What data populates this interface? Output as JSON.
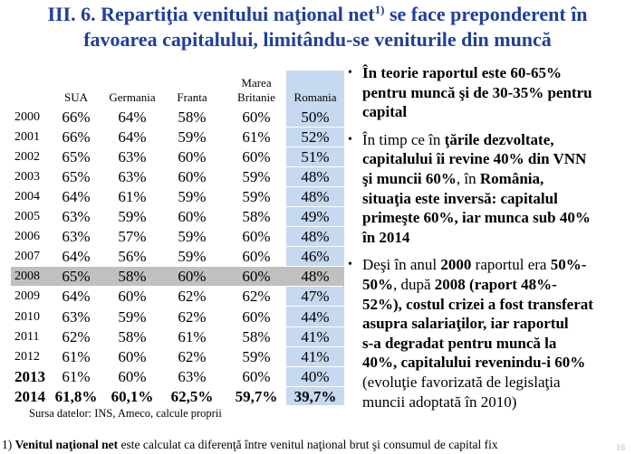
{
  "title": {
    "text": "III. 6. Repartiţia venitului naţional net",
    "sup": "1)",
    "rest": " se face preponderent în\nfavoarea capitalului, limitându-se veniturile din muncă"
  },
  "table": {
    "headers": [
      "SUA",
      "Germania",
      "Franta",
      "Marea\nBritanie",
      "Romania"
    ],
    "rows": [
      {
        "year": "2000",
        "values": [
          "66%",
          "64%",
          "58%",
          "60%",
          "50%"
        ]
      },
      {
        "year": "2001",
        "values": [
          "66%",
          "64%",
          "59%",
          "61%",
          "52%"
        ]
      },
      {
        "year": "2002",
        "values": [
          "65%",
          "63%",
          "60%",
          "60%",
          "51%"
        ]
      },
      {
        "year": "2003",
        "values": [
          "65%",
          "63%",
          "60%",
          "59%",
          "48%"
        ]
      },
      {
        "year": "2004",
        "values": [
          "64%",
          "61%",
          "59%",
          "59%",
          "48%"
        ]
      },
      {
        "year": "2005",
        "values": [
          "63%",
          "59%",
          "60%",
          "58%",
          "49%"
        ]
      },
      {
        "year": "2006",
        "values": [
          "63%",
          "57%",
          "59%",
          "60%",
          "48%"
        ]
      },
      {
        "year": "2007",
        "values": [
          "64%",
          "56%",
          "59%",
          "60%",
          "46%"
        ]
      },
      {
        "year": "2008",
        "values": [
          "65%",
          "58%",
          "60%",
          "60%",
          "48%"
        ],
        "highlight": true
      },
      {
        "year": "2009",
        "values": [
          "64%",
          "60%",
          "62%",
          "62%",
          "47%"
        ]
      },
      {
        "year": "2010",
        "values": [
          "63%",
          "59%",
          "62%",
          "60%",
          "44%"
        ]
      },
      {
        "year": "2011",
        "values": [
          "62%",
          "58%",
          "61%",
          "58%",
          "41%"
        ]
      },
      {
        "year": "2012",
        "values": [
          "61%",
          "60%",
          "62%",
          "59%",
          "41%"
        ]
      },
      {
        "year": "2013",
        "values": [
          "61%",
          "60%",
          "63%",
          "60%",
          "40%"
        ],
        "bold_year": true
      },
      {
        "year": "2014",
        "values": [
          "61,8%",
          "60,1%",
          "62,5%",
          "59,7%",
          "39,7%"
        ],
        "bold_year": true,
        "bold": true
      }
    ],
    "source": "Sursa datelor: INS, Ameco, calcule proprii"
  },
  "bullets": [
    [
      {
        "t": "În teorie raportul este 60-65%\npentru muncă şi de 30-35% pentru\ncapital",
        "b": true
      }
    ],
    [
      {
        "t": "În timp ce în ",
        "b": false
      },
      {
        "t": "ţările dezvoltate,\ncapitalului îi revine 40% din VNN\nşi muncii 60%",
        "b": true
      },
      {
        "t": ", în ",
        "b": false
      },
      {
        "t": "România,\nsituaţia este inversă: capitalul\nprimeşte 60%, iar munca sub 40%\nîn 2014",
        "b": true
      }
    ],
    [
      {
        "t": "Deşi în anul ",
        "b": false
      },
      {
        "t": "2000",
        "b": true
      },
      {
        "t": " raportul era ",
        "b": false
      },
      {
        "t": "50%-\n50%",
        "b": true
      },
      {
        "t": ", după ",
        "b": false
      },
      {
        "t": "2008 (raport 48%-\n52%), costul crizei a fost transferat\nasupra  salariaţilor, iar raportul\ns-a degradat pentru muncă la\n40%, capitalului revenindu-i 60%",
        "b": true
      },
      {
        "t": "\n(evoluţie favorizată de legislaţia\nmuncii adoptată în 2010)",
        "b": false
      }
    ]
  ],
  "footnote": {
    "num": "1) ",
    "bold": "Venitul naţional net",
    "rest": " este calculat ca diferenţă între venitul naţional brut şi consumul de capital fix"
  },
  "page_number": "16"
}
